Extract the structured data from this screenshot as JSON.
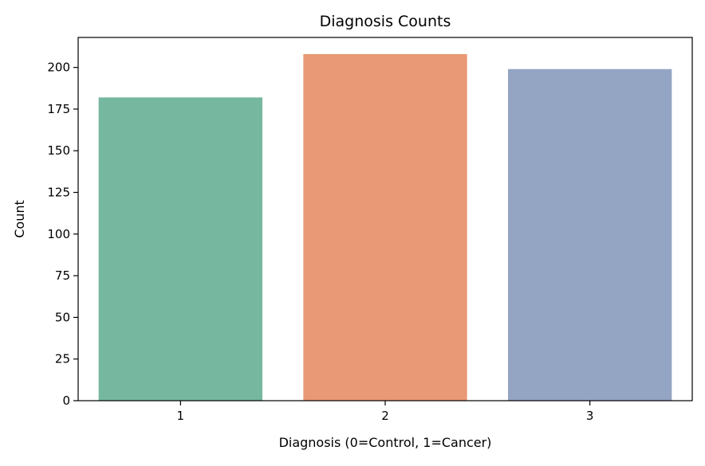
{
  "chart_data": {
    "type": "bar",
    "title": "Diagnosis Counts",
    "xlabel": "Diagnosis (0=Control, 1=Cancer)",
    "ylabel": "Count",
    "categories": [
      "1",
      "2",
      "3"
    ],
    "values": [
      182,
      208,
      199
    ],
    "colors": [
      "#76b7a0",
      "#e99976",
      "#94a4c3"
    ],
    "ylim": [
      0,
      218
    ],
    "yticks": [
      0,
      25,
      50,
      75,
      100,
      125,
      150,
      175,
      200
    ],
    "grid": false,
    "legend": "none"
  }
}
